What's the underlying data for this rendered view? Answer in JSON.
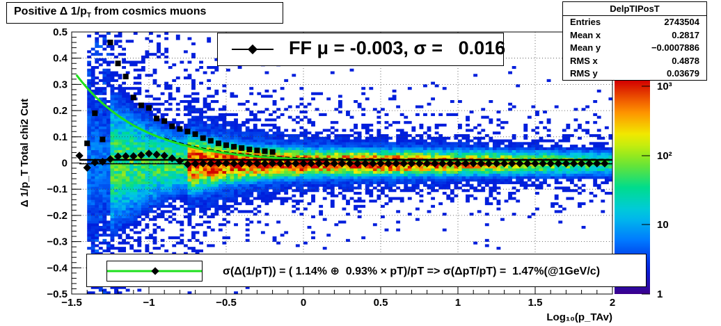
{
  "title": {
    "prefix": "Positive Δ 1/p",
    "subscript": "T",
    "suffix": " from cosmics muons"
  },
  "stats": {
    "name": "DelpTIPosT",
    "rows": [
      {
        "label": "Entries",
        "value": "2743504"
      },
      {
        "label": "Mean x",
        "value": "0.2817"
      },
      {
        "label": "Mean y",
        "value": "−0.0007886"
      },
      {
        "label": "RMS x",
        "value": "0.4878"
      },
      {
        "label": "RMS y",
        "value": "0.03679"
      }
    ]
  },
  "fit_legend": "FF μ = -0.003, σ =   0.016",
  "resolution_legend": "σ(Δ(1/pT)) = ( 1.14% ⊕  0.93% × pT)/pT => σ(ΔpT/pT) =  1.47%(@1GeV/c)",
  "chart_data": {
    "type": "heatmap",
    "xlabel": "Log₁₀(p_TAv)",
    "ylabel": "Δ 1/p_T   Total chi2 Cut",
    "xlim": [
      -1.5,
      2
    ],
    "ylim": [
      -0.5,
      0.5
    ],
    "x_ticks": [
      "−1.5",
      "−1",
      "−0.5",
      "0",
      "0.5",
      "1",
      "1.5",
      "2"
    ],
    "y_ticks": [
      "0.5",
      "0.4",
      "0.3",
      "0.2",
      "0.1",
      "0",
      "−0.1",
      "−0.2",
      "−0.3",
      "−0.4",
      "−0.5"
    ],
    "z_scale": "log",
    "z_ticks": [
      "1",
      "10",
      "10²",
      "10³"
    ],
    "grid": true,
    "mean_series": {
      "name": "FF μ = -0.003, σ =   0.016",
      "x": [
        -1.45,
        -1.4,
        -1.35,
        -1.3,
        -1.25,
        -1.2,
        -1.15,
        -1.1,
        -1.05,
        -1.0,
        -0.95,
        -0.9,
        -0.85,
        -0.8,
        -0.75,
        -0.7,
        -0.65,
        -0.6,
        -0.55,
        -0.5,
        -0.45,
        -0.4,
        -0.35,
        -0.3,
        -0.25,
        -0.2,
        -0.15,
        -0.1,
        -0.05,
        0.0,
        0.05,
        0.1,
        0.15,
        0.2,
        0.25,
        0.3,
        0.35,
        0.4,
        0.45,
        0.5,
        0.55,
        0.6,
        0.65,
        0.7,
        0.75,
        0.8,
        0.85,
        0.9,
        0.95,
        1.0,
        1.05,
        1.1,
        1.15,
        1.2,
        1.25,
        1.3,
        1.35,
        1.4,
        1.45,
        1.5,
        1.55,
        1.6,
        1.65,
        1.7,
        1.75,
        1.8,
        1.85,
        1.9,
        1.95
      ],
      "y": [
        0.028,
        -0.018,
        0.002,
        0.005,
        0.015,
        0.025,
        0.026,
        0.026,
        0.03,
        0.036,
        0.032,
        0.028,
        0.018,
        0.008,
        -0.005,
        -0.003,
        -0.002,
        -0.002,
        -0.001,
        -0.001,
        -0.002,
        -0.002,
        -0.002,
        -0.002,
        -0.002,
        -0.002,
        -0.002,
        -0.002,
        -0.002,
        -0.002,
        -0.002,
        -0.002,
        -0.002,
        -0.002,
        -0.002,
        -0.002,
        -0.002,
        -0.002,
        -0.002,
        -0.002,
        -0.002,
        -0.002,
        -0.002,
        -0.002,
        -0.002,
        -0.002,
        -0.002,
        -0.002,
        -0.002,
        -0.002,
        -0.002,
        -0.002,
        -0.002,
        -0.002,
        -0.002,
        -0.002,
        -0.002,
        -0.002,
        -0.002,
        -0.002,
        -0.002,
        -0.002,
        -0.002,
        -0.002,
        -0.002,
        -0.002,
        -0.002,
        -0.002,
        -0.002
      ]
    },
    "sigma_series": {
      "x": [
        -1.4,
        -1.35,
        -1.3,
        -1.25,
        -1.2,
        -1.15,
        -1.1,
        -1.05,
        -1.0,
        -0.95,
        -0.9,
        -0.85,
        -0.8,
        -0.75,
        -0.7,
        -0.65,
        -0.6,
        -0.55,
        -0.5,
        -0.45,
        -0.4,
        -0.35,
        -0.3,
        -0.25,
        -0.2
      ],
      "y": [
        0.075,
        0.19,
        0.09,
        0.46,
        0.38,
        0.33,
        0.25,
        0.22,
        0.21,
        0.17,
        0.16,
        0.14,
        0.13,
        0.12,
        0.11,
        0.095,
        0.085,
        0.075,
        0.068,
        0.062,
        0.057,
        0.052,
        0.048,
        0.045,
        0.042
      ]
    },
    "resolution_fit": {
      "name": "σ(Δ(1/pT)) = ( 1.14% ⊕  0.93% × pT)/pT => σ(ΔpT/pT) =  1.47%(@1GeV/c)",
      "a": 0.0114,
      "b": 0.0093
    }
  }
}
